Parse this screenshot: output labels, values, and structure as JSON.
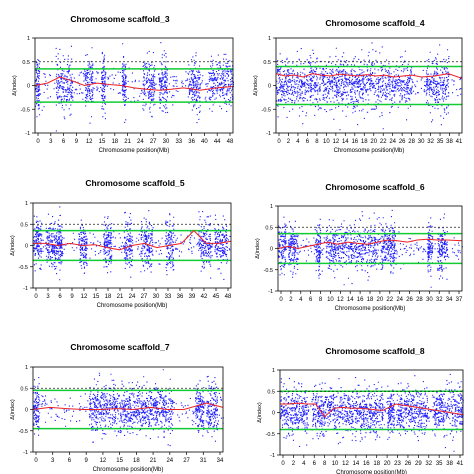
{
  "colors": {
    "points": "#1d1dff",
    "smooth": "#ee2222",
    "confidence": "#11cc33",
    "threshold": "#222222",
    "axis": "#000000"
  },
  "chart_data": [
    {
      "type": "scatter",
      "title": "Chromosome scaffold_3",
      "xlabel": "Chromosome position(Mb)",
      "ylabel": "Δ(index)",
      "ylim": [
        -1,
        1
      ],
      "yticks": [
        "-1",
        "-0.5",
        "0",
        "0.5",
        "1"
      ],
      "xticks": [
        "0",
        "3",
        "6",
        "9",
        "12",
        "15",
        "18",
        "21",
        "24",
        "27",
        "30",
        "33",
        "36",
        "40",
        "44",
        "48"
      ],
      "xlim": [
        0,
        48
      ],
      "threshold_lines": [
        0.5,
        -0.5
      ],
      "confidence_band": {
        "upper": 0.35,
        "lower": -0.35
      },
      "dense_blocks": [
        [
          0,
          1
        ],
        [
          5,
          9
        ],
        [
          12,
          14
        ],
        [
          16,
          17
        ],
        [
          21,
          22
        ],
        [
          26,
          29
        ],
        [
          30,
          32
        ],
        [
          37,
          40
        ],
        [
          42,
          48
        ]
      ],
      "smooth_line": {
        "x": [
          0,
          3,
          6,
          9,
          12,
          15,
          18,
          21,
          24,
          27,
          30,
          33,
          36,
          40,
          44,
          48
        ],
        "y": [
          0.0,
          0.05,
          0.18,
          0.1,
          0.0,
          0.05,
          0.02,
          0.0,
          -0.05,
          -0.08,
          -0.1,
          -0.08,
          -0.05,
          -0.1,
          -0.05,
          -0.02
        ]
      }
    },
    {
      "type": "scatter",
      "title": "Chromosome scaffold_4",
      "xlabel": "Chromosome position(Mb)",
      "ylabel": "Δ(index)",
      "ylim": [
        -1,
        1
      ],
      "yticks": [
        "-1",
        "-0.5",
        "0",
        "0.5",
        "1"
      ],
      "xticks": [
        "0",
        "2",
        "4",
        "6",
        "8",
        "10",
        "12",
        "14",
        "16",
        "18",
        "20",
        "22",
        "24",
        "26",
        "28",
        "30",
        "32",
        "35",
        "38",
        "41"
      ],
      "xlim": [
        0,
        41
      ],
      "threshold_lines": [
        0.5,
        -0.5
      ],
      "confidence_band": {
        "upper": 0.4,
        "lower": -0.4
      },
      "dense_blocks": [
        [
          0,
          9
        ],
        [
          9,
          30
        ],
        [
          33,
          38
        ]
      ],
      "smooth_line": {
        "x": [
          0,
          2,
          4,
          6,
          8,
          10,
          12,
          14,
          16,
          18,
          20,
          22,
          24,
          26,
          28,
          30,
          32,
          35,
          38,
          41
        ],
        "y": [
          0.25,
          0.2,
          0.22,
          0.18,
          0.25,
          0.22,
          0.2,
          0.24,
          0.22,
          0.2,
          0.23,
          0.2,
          0.22,
          0.18,
          0.2,
          0.22,
          0.18,
          0.2,
          0.25,
          0.15
        ]
      }
    },
    {
      "type": "scatter",
      "title": "Chromosome scaffold_5",
      "xlabel": "Chromosome position(Mb)",
      "ylabel": "Δ(index)",
      "ylim": [
        -1,
        1
      ],
      "yticks": [
        "-1",
        "-0.5",
        "0",
        "0.5",
        "1"
      ],
      "xticks": [
        "0",
        "3",
        "6",
        "9",
        "12",
        "15",
        "18",
        "21",
        "24",
        "27",
        "30",
        "33",
        "36",
        "39",
        "42",
        "45",
        "48"
      ],
      "xlim": [
        0,
        48
      ],
      "threshold_lines": [
        0.5,
        -0.5
      ],
      "confidence_band": {
        "upper": 0.35,
        "lower": -0.35
      },
      "dense_blocks": [
        [
          0,
          2
        ],
        [
          3,
          6
        ],
        [
          6,
          7
        ],
        [
          11,
          13
        ],
        [
          17,
          19
        ],
        [
          22,
          24
        ],
        [
          26,
          29
        ],
        [
          32,
          34
        ],
        [
          40,
          43
        ],
        [
          44,
          47
        ]
      ],
      "smooth_line": {
        "x": [
          0,
          3,
          6,
          9,
          12,
          15,
          18,
          21,
          24,
          27,
          30,
          33,
          36,
          39,
          42,
          45,
          48
        ],
        "y": [
          0.05,
          0.05,
          0.0,
          0.05,
          0.0,
          0.02,
          -0.05,
          -0.1,
          0.0,
          0.05,
          -0.05,
          0.0,
          0.05,
          0.35,
          0.05,
          0.05,
          0.1
        ]
      }
    },
    {
      "type": "scatter",
      "title": "Chromosome scaffold_6",
      "xlabel": "Chromosome position(Mb)",
      "ylabel": "Δ(index)",
      "ylim": [
        -1,
        1
      ],
      "yticks": [
        "-1",
        "-0.5",
        "0",
        "0.5",
        "1"
      ],
      "xticks": [
        "0",
        "2",
        "4",
        "6",
        "8",
        "10",
        "12",
        "14",
        "16",
        "18",
        "20",
        "22",
        "24",
        "26",
        "28",
        "30",
        "32",
        "34",
        "37"
      ],
      "xlim": [
        0,
        37
      ],
      "threshold_lines": [
        0.5,
        -0.5
      ],
      "confidence_band": {
        "upper": 0.35,
        "lower": -0.35
      },
      "dense_blocks": [
        [
          0,
          1.5
        ],
        [
          2,
          4
        ],
        [
          7.5,
          8.5
        ],
        [
          9.5,
          22
        ],
        [
          22,
          23.5
        ],
        [
          30,
          31
        ],
        [
          32,
          34
        ]
      ],
      "smooth_line": {
        "x": [
          0,
          2,
          4,
          6,
          8,
          10,
          12,
          14,
          16,
          18,
          20,
          22,
          24,
          26,
          28,
          30,
          32,
          34,
          37
        ],
        "y": [
          0.0,
          0.05,
          0.0,
          0.05,
          0.1,
          0.15,
          0.1,
          0.15,
          0.12,
          0.1,
          0.15,
          0.2,
          0.18,
          0.15,
          0.2,
          0.22,
          0.2,
          0.2,
          0.18
        ]
      }
    },
    {
      "type": "scatter",
      "title": "Chromosome scaffold_7",
      "xlabel": "Chromosome position(Mb)",
      "ylabel": "Δ(index)",
      "ylim": [
        -1,
        1
      ],
      "yticks": [
        "-1",
        "-0.5",
        "0",
        "0.5",
        "1"
      ],
      "xticks": [
        "0",
        "3",
        "6",
        "9",
        "12",
        "15",
        "18",
        "21",
        "24",
        "27",
        "31",
        "34"
      ],
      "xlim": [
        0,
        34
      ],
      "threshold_lines": [
        0.5,
        -0.5
      ],
      "confidence_band": {
        "upper": 0.45,
        "lower": -0.45
      },
      "dense_blocks": [
        [
          0,
          1
        ],
        [
          10,
          13
        ],
        [
          13,
          20
        ],
        [
          20,
          25
        ],
        [
          29,
          30.5
        ],
        [
          31,
          33
        ]
      ],
      "smooth_line": {
        "x": [
          0,
          3,
          6,
          9,
          12,
          15,
          18,
          21,
          24,
          27,
          31,
          34
        ],
        "y": [
          0.0,
          0.05,
          0.02,
          0.0,
          0.0,
          0.02,
          0.0,
          0.05,
          0.0,
          0.0,
          0.15,
          0.05
        ]
      }
    },
    {
      "type": "scatter",
      "title": "Chromosome scaffold_8",
      "xlabel": "Chromosome position(Mb)",
      "ylabel": "Δ(index)",
      "ylim": [
        -1,
        1
      ],
      "yticks": [
        "-1",
        "-0.5",
        "0",
        "0.5",
        "1"
      ],
      "xticks": [
        "0",
        "2",
        "4",
        "6",
        "8",
        "10",
        "12",
        "14",
        "16",
        "18",
        "20",
        "23",
        "26",
        "29",
        "32",
        "35",
        "38",
        "41"
      ],
      "xlim": [
        0,
        41
      ],
      "threshold_lines": [
        0.5,
        -0.5
      ],
      "confidence_band": {
        "upper": 0.5,
        "lower": -0.4
      },
      "dense_blocks": [
        [
          0,
          6
        ],
        [
          7,
          18
        ],
        [
          18,
          23
        ],
        [
          24,
          25.5
        ],
        [
          26,
          33
        ],
        [
          34,
          41
        ]
      ],
      "smooth_line": {
        "x": [
          0,
          2,
          4,
          6,
          8,
          10,
          12,
          14,
          16,
          18,
          20,
          23,
          26,
          29,
          32,
          35,
          38,
          41
        ],
        "y": [
          0.2,
          0.2,
          0.22,
          0.2,
          0.2,
          -0.1,
          0.1,
          0.12,
          0.1,
          0.1,
          0.08,
          0.05,
          0.2,
          0.15,
          0.1,
          0.05,
          0.0,
          -0.05
        ]
      }
    }
  ]
}
